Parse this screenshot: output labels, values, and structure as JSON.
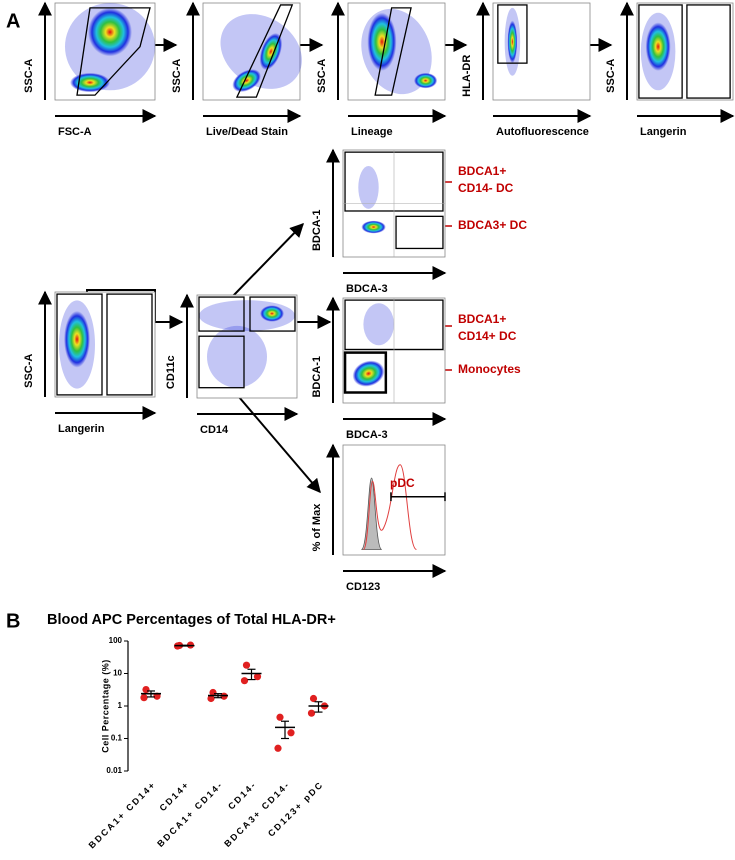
{
  "panel_labels": [
    "A",
    "B"
  ],
  "flow_plots": [
    {
      "y_label": "SSC-A",
      "x_label": "FSC-A"
    },
    {
      "y_label": "SSC-A",
      "x_label": "Live/Dead Stain"
    },
    {
      "y_label": "SSC-A",
      "x_label": "Lineage"
    },
    {
      "y_label": "HLA-DR",
      "x_label": "Autofluorescence"
    },
    {
      "y_label": "SSC-A",
      "x_label": "Langerin"
    },
    {
      "y_label": "SSC-A",
      "x_label": "Langerin"
    },
    {
      "y_label": "CD11c",
      "x_label": "CD14"
    },
    {
      "y_label": "BDCA-1",
      "x_label": "BDCA-3"
    },
    {
      "y_label": "BDCA-1",
      "x_label": "BDCA-3"
    },
    {
      "y_label": "% of Max",
      "x_label": "CD123"
    }
  ],
  "gate_labels": [
    [
      "BDCA1+",
      "CD14- DC"
    ],
    [
      "BDCA3+ DC"
    ],
    [
      "BDCA1+",
      "CD14+ DC"
    ],
    [
      "Monocytes"
    ],
    [
      "pDC"
    ]
  ],
  "chart_data": {
    "type": "dot",
    "title": "Blood APC Percentages of Total HLA-DR+",
    "y_label": "Cell Percentage (%)",
    "categories": [
      "BDCA1+ CD14+",
      "CD14+",
      "BDCA1+ CD14-",
      "CD14-",
      "BDCA3+ CD14-",
      "CD123+ pDC"
    ],
    "points": [
      [
        3.2,
        2.0,
        1.8
      ],
      [
        73,
        75,
        70
      ],
      [
        2.6,
        2.0,
        1.7
      ],
      [
        18,
        8,
        6
      ],
      [
        0.45,
        0.15,
        0.05
      ],
      [
        1.7,
        1.0,
        0.6
      ]
    ],
    "means": [
      2.4,
      72,
      2.1,
      10,
      0.22,
      1.0
    ],
    "sems": [
      0.5,
      2,
      0.3,
      3.5,
      0.12,
      0.35
    ],
    "color": "#e02020",
    "y_scale": "log",
    "ylim": [
      0.01,
      100
    ],
    "yticks": [
      0.01,
      0.1,
      1,
      10,
      100
    ]
  }
}
